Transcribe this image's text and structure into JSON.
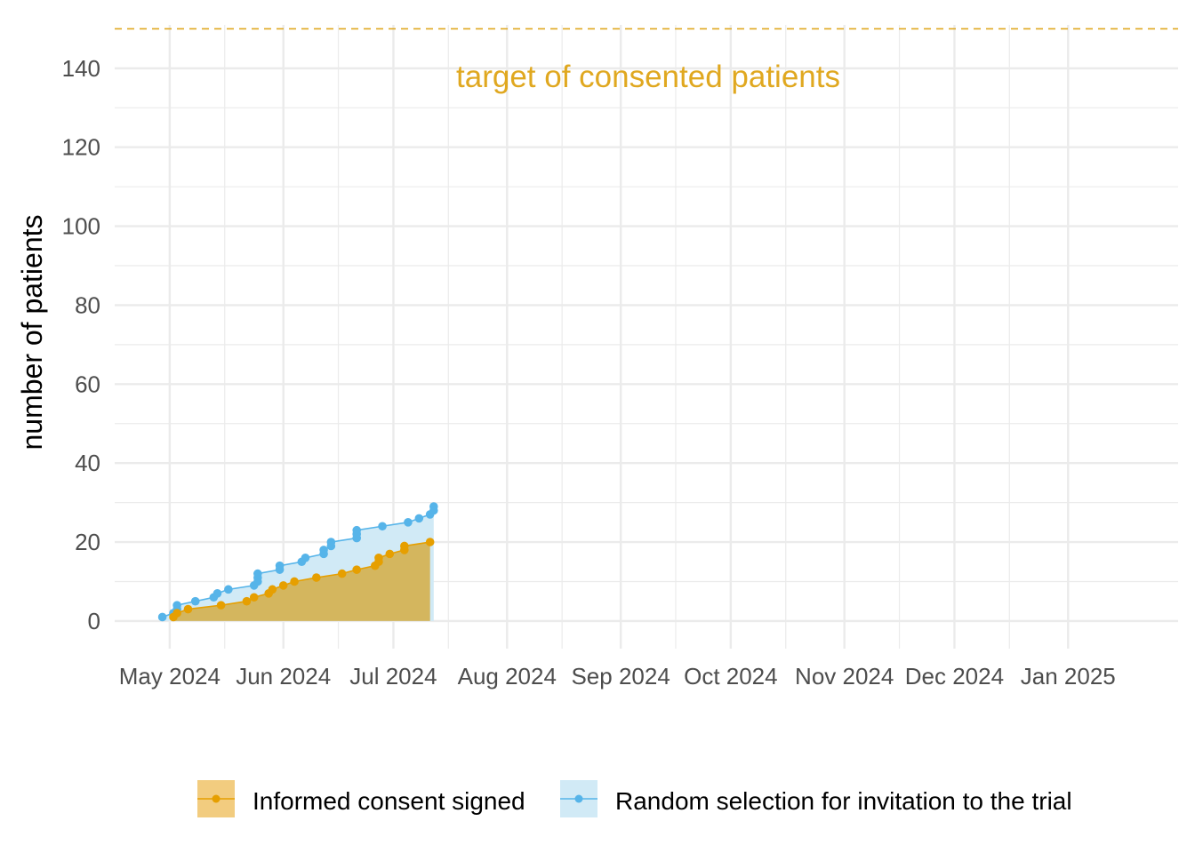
{
  "colors": {
    "consent": "#E69F00",
    "consent_fill": "#D4B65E",
    "random": "#56B4E9",
    "random_fill": "#D1EAF6",
    "target": "#E0A820",
    "grid": "#EBEBEB",
    "tick_text": "#4D4D4D"
  },
  "chart_data": {
    "type": "area",
    "title": "",
    "xlabel": "",
    "ylabel": "number of patients",
    "x_type": "date",
    "xlim": [
      "2024-04-16",
      "2025-01-31"
    ],
    "ylim": [
      -7,
      151
    ],
    "x_ticks": [
      {
        "date": "2024-05-01",
        "label": "May 2024"
      },
      {
        "date": "2024-06-01",
        "label": "Jun 2024"
      },
      {
        "date": "2024-07-01",
        "label": "Jul 2024"
      },
      {
        "date": "2024-08-01",
        "label": "Aug 2024"
      },
      {
        "date": "2024-09-01",
        "label": "Sep 2024"
      },
      {
        "date": "2024-10-01",
        "label": "Oct 2024"
      },
      {
        "date": "2024-11-01",
        "label": "Nov 2024"
      },
      {
        "date": "2024-12-01",
        "label": "Dec 2024"
      },
      {
        "date": "2025-01-01",
        "label": "Jan 2025"
      }
    ],
    "y_ticks": [
      0,
      20,
      40,
      60,
      80,
      100,
      120,
      140
    ],
    "grid": true,
    "reference_line": {
      "y": 150,
      "label": "target of consented patients",
      "style": "dashed"
    },
    "legend_position": "bottom",
    "series": [
      {
        "name": "Random selection for invitation to the trial",
        "key": "random",
        "points": [
          {
            "x": "2024-04-29",
            "y": 1
          },
          {
            "x": "2024-05-02",
            "y": 2
          },
          {
            "x": "2024-05-03",
            "y": 3
          },
          {
            "x": "2024-05-03",
            "y": 4
          },
          {
            "x": "2024-05-08",
            "y": 5
          },
          {
            "x": "2024-05-13",
            "y": 6
          },
          {
            "x": "2024-05-14",
            "y": 7
          },
          {
            "x": "2024-05-17",
            "y": 8
          },
          {
            "x": "2024-05-24",
            "y": 9
          },
          {
            "x": "2024-05-25",
            "y": 10
          },
          {
            "x": "2024-05-25",
            "y": 11
          },
          {
            "x": "2024-05-25",
            "y": 12
          },
          {
            "x": "2024-05-31",
            "y": 13
          },
          {
            "x": "2024-05-31",
            "y": 14
          },
          {
            "x": "2024-06-06",
            "y": 15
          },
          {
            "x": "2024-06-07",
            "y": 16
          },
          {
            "x": "2024-06-12",
            "y": 17
          },
          {
            "x": "2024-06-12",
            "y": 18
          },
          {
            "x": "2024-06-14",
            "y": 19
          },
          {
            "x": "2024-06-14",
            "y": 20
          },
          {
            "x": "2024-06-21",
            "y": 21
          },
          {
            "x": "2024-06-21",
            "y": 22
          },
          {
            "x": "2024-06-21",
            "y": 23
          },
          {
            "x": "2024-06-28",
            "y": 24
          },
          {
            "x": "2024-07-05",
            "y": 25
          },
          {
            "x": "2024-07-08",
            "y": 26
          },
          {
            "x": "2024-07-11",
            "y": 27
          },
          {
            "x": "2024-07-12",
            "y": 28
          },
          {
            "x": "2024-07-12",
            "y": 29
          }
        ]
      },
      {
        "name": "Informed consent signed",
        "key": "consent",
        "points": [
          {
            "x": "2024-05-02",
            "y": 1
          },
          {
            "x": "2024-05-03",
            "y": 2
          },
          {
            "x": "2024-05-06",
            "y": 3
          },
          {
            "x": "2024-05-15",
            "y": 4
          },
          {
            "x": "2024-05-22",
            "y": 5
          },
          {
            "x": "2024-05-24",
            "y": 6
          },
          {
            "x": "2024-05-28",
            "y": 7
          },
          {
            "x": "2024-05-29",
            "y": 8
          },
          {
            "x": "2024-06-01",
            "y": 9
          },
          {
            "x": "2024-06-04",
            "y": 10
          },
          {
            "x": "2024-06-10",
            "y": 11
          },
          {
            "x": "2024-06-17",
            "y": 12
          },
          {
            "x": "2024-06-21",
            "y": 13
          },
          {
            "x": "2024-06-26",
            "y": 14
          },
          {
            "x": "2024-06-27",
            "y": 15
          },
          {
            "x": "2024-06-27",
            "y": 16
          },
          {
            "x": "2024-06-30",
            "y": 17
          },
          {
            "x": "2024-07-04",
            "y": 18
          },
          {
            "x": "2024-07-04",
            "y": 19
          },
          {
            "x": "2024-07-11",
            "y": 20
          }
        ]
      }
    ]
  },
  "legend": {
    "items": [
      {
        "label": "Informed consent signed",
        "key": "consent"
      },
      {
        "label": "Random selection for invitation to the trial",
        "key": "random"
      }
    ]
  }
}
